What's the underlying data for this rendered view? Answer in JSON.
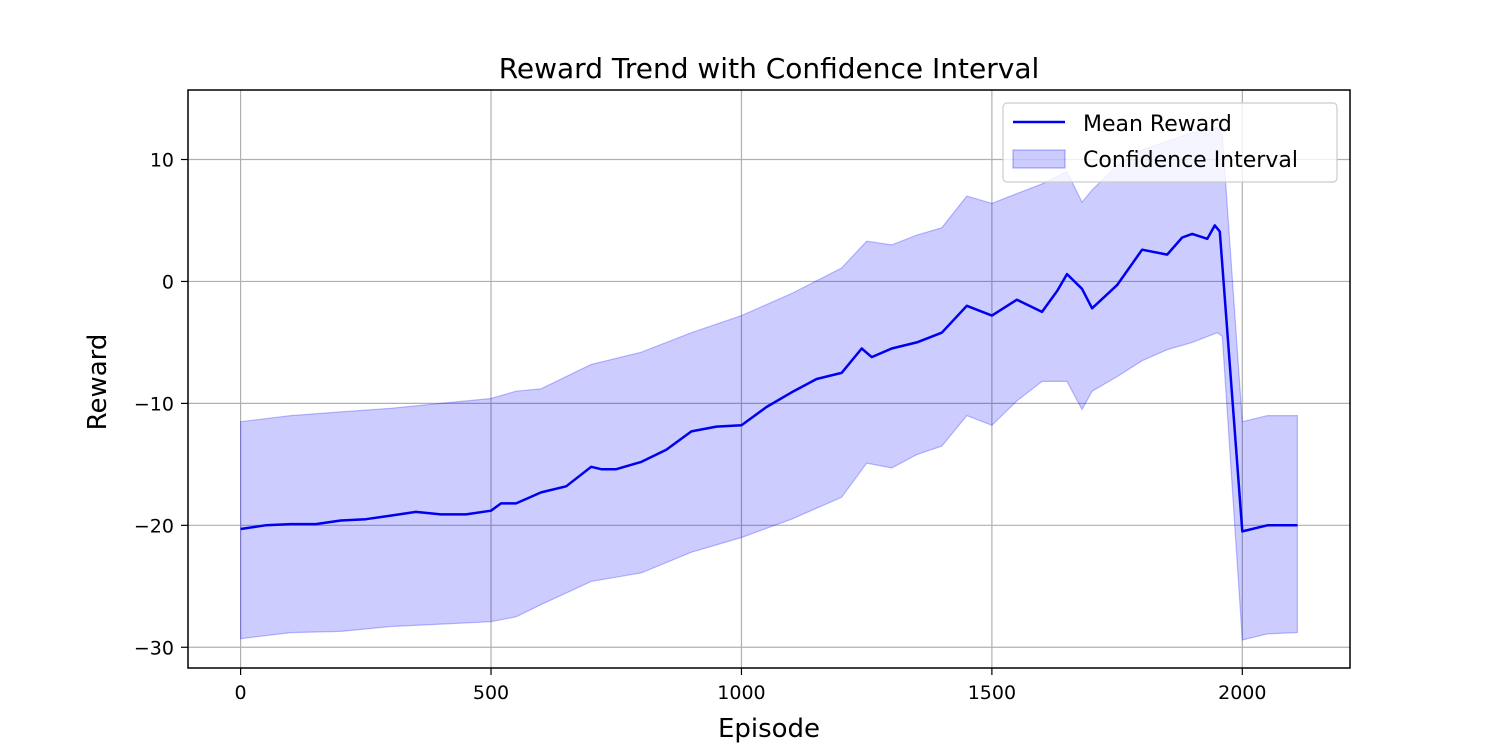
{
  "chart_data": {
    "type": "line",
    "title": "Reward Trend with Confidence Interval",
    "xlabel": "Episode",
    "ylabel": "Reward",
    "xlim": [
      -105,
      2215
    ],
    "ylim": [
      -31.7,
      15.7
    ],
    "xticks": [
      0,
      500,
      1000,
      1500,
      2000
    ],
    "yticks": [
      -30,
      -20,
      -10,
      0,
      10
    ],
    "grid": true,
    "legend_position": "upper-right",
    "series": [
      {
        "name": "Mean Reward",
        "kind": "line",
        "color": "#0000ee",
        "x": [
          0,
          50,
          100,
          150,
          200,
          250,
          300,
          350,
          400,
          450,
          500,
          520,
          550,
          600,
          650,
          700,
          720,
          750,
          800,
          850,
          900,
          950,
          1000,
          1050,
          1100,
          1150,
          1200,
          1240,
          1260,
          1300,
          1350,
          1400,
          1450,
          1500,
          1550,
          1600,
          1630,
          1650,
          1680,
          1700,
          1750,
          1800,
          1850,
          1880,
          1900,
          1930,
          1945,
          1955,
          2000,
          2050,
          2110
        ],
        "y": [
          -20.3,
          -20.0,
          -19.9,
          -19.9,
          -19.6,
          -19.5,
          -19.2,
          -18.9,
          -19.1,
          -19.1,
          -18.8,
          -18.2,
          -18.2,
          -17.3,
          -16.8,
          -15.2,
          -15.4,
          -15.4,
          -14.8,
          -13.8,
          -12.3,
          -11.9,
          -11.8,
          -10.3,
          -9.1,
          -8.0,
          -7.5,
          -5.5,
          -6.2,
          -5.5,
          -5.0,
          -4.2,
          -2.0,
          -2.8,
          -1.5,
          -2.5,
          -0.8,
          0.6,
          -0.6,
          -2.2,
          -0.3,
          2.6,
          2.2,
          3.6,
          3.9,
          3.5,
          4.6,
          4.1,
          -20.5,
          -20.0,
          -20.0
        ]
      },
      {
        "name": "Confidence Interval",
        "kind": "band",
        "color": "#0000ff",
        "x": [
          0,
          100,
          200,
          300,
          400,
          500,
          550,
          600,
          700,
          800,
          900,
          1000,
          1100,
          1200,
          1250,
          1300,
          1350,
          1400,
          1450,
          1500,
          1550,
          1600,
          1650,
          1680,
          1700,
          1750,
          1800,
          1850,
          1900,
          1950,
          1960,
          2000,
          2050,
          2110
        ],
        "upper": [
          -11.5,
          -11.0,
          -10.7,
          -10.4,
          -10.0,
          -9.6,
          -9.0,
          -8.8,
          -6.8,
          -5.8,
          -4.2,
          -2.8,
          -1.0,
          1.1,
          3.3,
          3.0,
          3.8,
          4.4,
          7.0,
          6.4,
          7.2,
          8.0,
          9.0,
          6.5,
          7.5,
          9.5,
          10.8,
          11.5,
          12.2,
          12.6,
          12.0,
          -11.5,
          -11.0,
          -11.0
        ],
        "lower": [
          -29.3,
          -28.8,
          -28.7,
          -28.3,
          -28.1,
          -27.9,
          -27.5,
          -26.5,
          -24.6,
          -23.9,
          -22.2,
          -21.0,
          -19.5,
          -17.7,
          -14.9,
          -15.3,
          -14.2,
          -13.5,
          -11.0,
          -11.8,
          -9.8,
          -8.2,
          -8.2,
          -10.5,
          -9.0,
          -7.8,
          -6.5,
          -5.6,
          -5.0,
          -4.2,
          -4.5,
          -29.4,
          -28.9,
          -28.8
        ]
      }
    ]
  }
}
